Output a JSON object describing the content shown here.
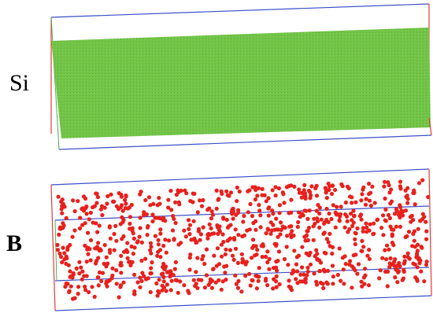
{
  "panels": [
    {
      "label": "Si"
    },
    {
      "label": "B"
    }
  ]
}
